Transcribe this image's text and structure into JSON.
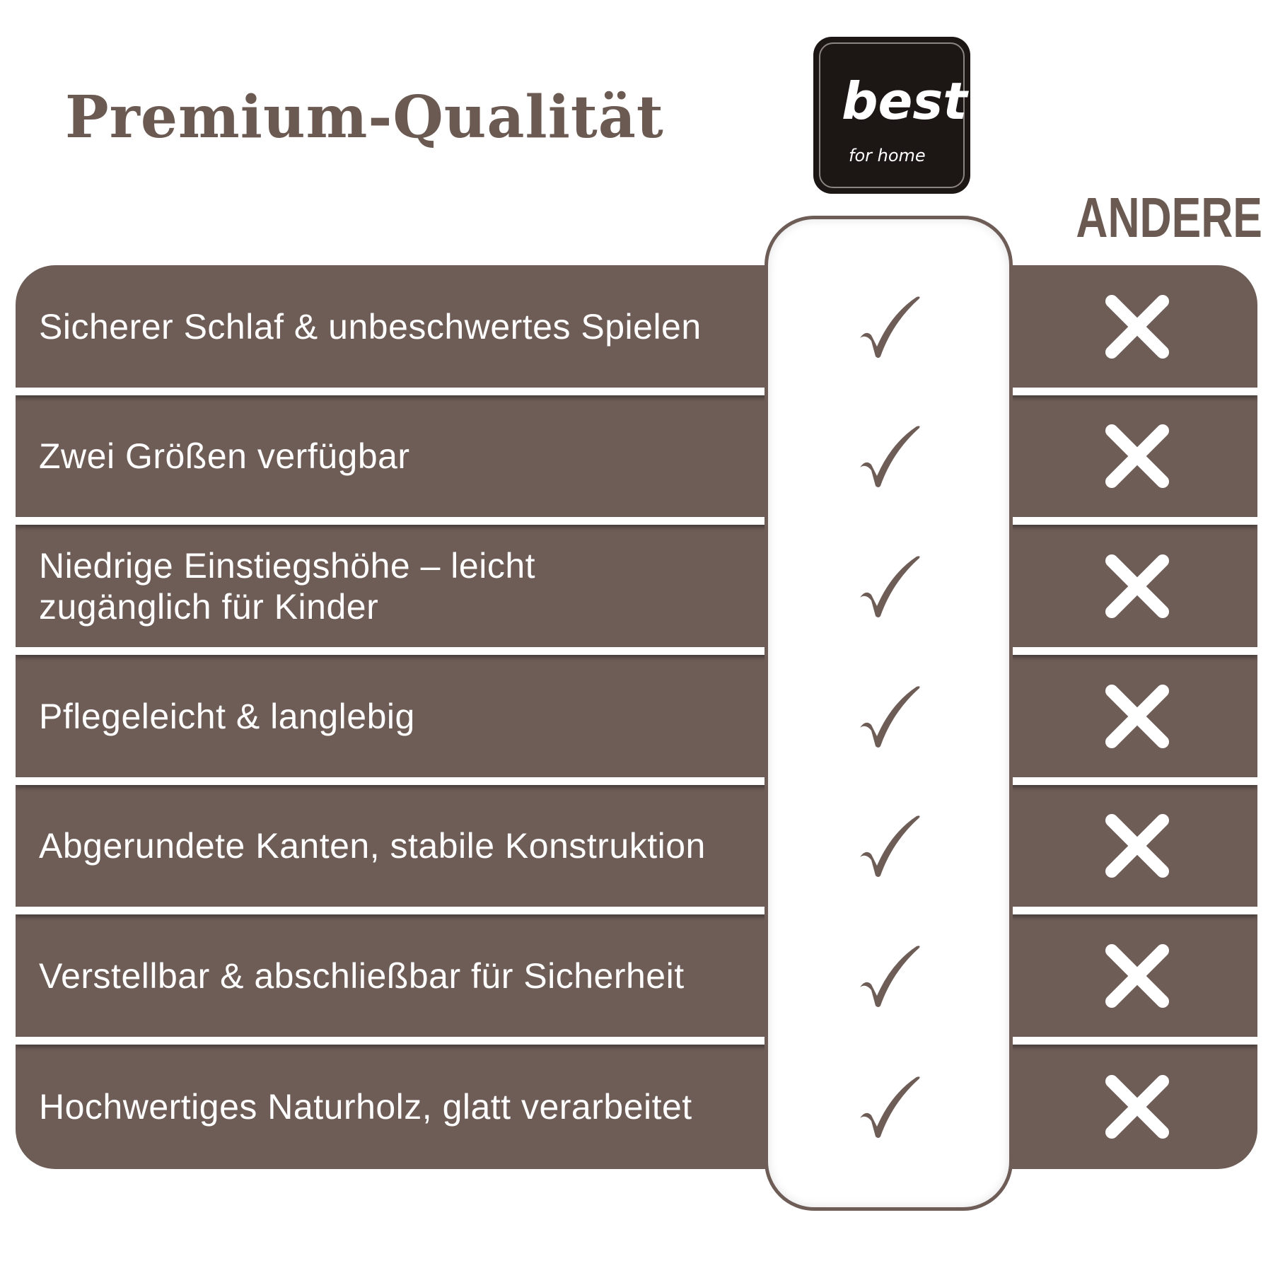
{
  "title": "Premium-Qualität",
  "logo": {
    "text": "best",
    "subtext": "for home"
  },
  "comparison_label": "ANDERE",
  "colors": {
    "brand": "#6e5d57",
    "title": "#6b5a52",
    "logo_bg": "#1c1614"
  },
  "rows": [
    {
      "label": "Sicherer Schlaf & unbeschwertes Spielen",
      "best": "check-icon",
      "andere": "x-icon"
    },
    {
      "label": "Zwei Größen verfügbar",
      "best": "check-icon",
      "andere": "x-icon"
    },
    {
      "label": "Niedrige Einstiegshöhe – leicht zugänglich für Kinder",
      "best": "check-icon",
      "andere": "x-icon"
    },
    {
      "label": "Pflegeleicht & langlebig",
      "best": "check-icon",
      "andere": "x-icon"
    },
    {
      "label": "Abgerundete Kanten, stabile Konstruktion",
      "best": "check-icon",
      "andere": "x-icon"
    },
    {
      "label": "Verstellbar & abschließbar für Sicherheit",
      "best": "check-icon",
      "andere": "x-icon"
    },
    {
      "label": "Hochwertiges Naturholz, glatt verarbeitet",
      "best": "check-icon",
      "andere": "x-icon"
    }
  ]
}
